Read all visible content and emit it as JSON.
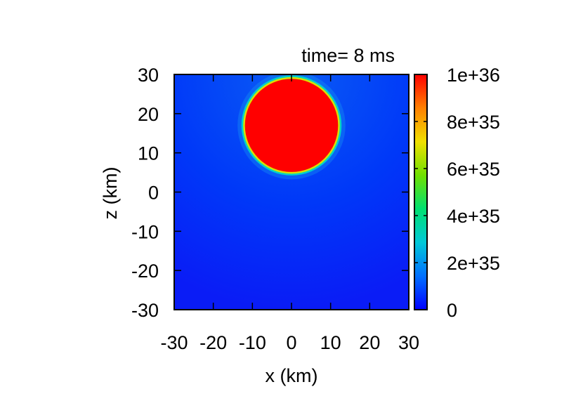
{
  "chart_data": {
    "type": "heatmap",
    "title": "time= 8 ms",
    "xlabel": "x (km)",
    "ylabel": "z (km)",
    "xlim": [
      -30,
      30
    ],
    "ylim": [
      -30,
      30
    ],
    "xticks": [
      -30,
      -20,
      -10,
      0,
      10,
      20,
      30
    ],
    "yticks": [
      -30,
      -20,
      -10,
      0,
      10,
      20,
      30
    ],
    "xtick_labels": [
      "-30",
      "-20",
      "-10",
      "0",
      "10",
      "20",
      "30"
    ],
    "ytick_labels": [
      "-30",
      "-20",
      "-10",
      "0",
      "10",
      "20",
      "30"
    ],
    "colorbar": {
      "range": [
        0,
        1e+36
      ],
      "ticks": [
        0,
        2e+35,
        4e+35,
        6e+35,
        8e+35,
        1e+36
      ],
      "tick_labels": [
        "0",
        "2e+35",
        "4e+35",
        "6e+35",
        "8e+35",
        "1e+36"
      ],
      "colors": [
        "#0000ff",
        "#0070ff",
        "#00c8d8",
        "#00e070",
        "#6fe000",
        "#f0e000",
        "#ff8000",
        "#ff0000"
      ]
    },
    "features": [
      {
        "shape": "saturated disk",
        "center_x_km": 0,
        "center_z_km": 17,
        "radius_km": 12,
        "value": 1e+36,
        "extends_to": "top boundary"
      },
      {
        "shape": "background",
        "value_range": [
          0,
          1e+35
        ]
      }
    ]
  }
}
